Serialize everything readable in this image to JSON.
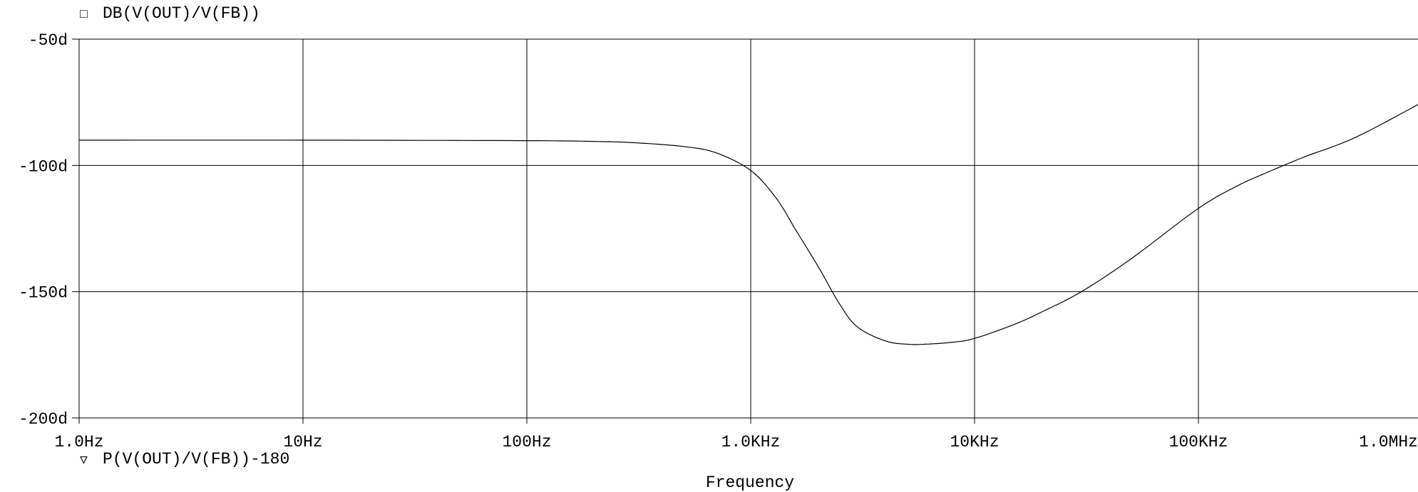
{
  "chart_data": {
    "type": "line",
    "x_scale": "log",
    "xlabel": "Frequency",
    "x_tick_labels": [
      "1.0Hz",
      "10Hz",
      "100Hz",
      "1.0KHz",
      "10KHz",
      "100KHz",
      "1.0MHz"
    ],
    "x_tick_values": [
      1,
      10,
      100,
      1000,
      10000,
      100000,
      1000000
    ],
    "xlim": [
      1,
      1000000
    ],
    "y_tick_labels": [
      "-50d",
      "-100d",
      "-150d",
      "-200d"
    ],
    "y_tick_values": [
      -50,
      -100,
      -150,
      -200
    ],
    "ylim": [
      -200,
      -50
    ],
    "grid": true,
    "legend": [
      {
        "marker": "□",
        "label": "DB(V(OUT)/V(FB))"
      },
      {
        "marker": "▽",
        "label": "P(V(OUT)/V(FB))-180"
      }
    ],
    "series": [
      {
        "name": "P(V(OUT)/V(FB))-180",
        "color": "#000000",
        "x": [
          1,
          10,
          100,
          200,
          300,
          500,
          700,
          1000,
          1300,
          1600,
          2000,
          2500,
          3000,
          4000,
          5000,
          6000,
          8000,
          10000,
          15000,
          20000,
          30000,
          50000,
          100000,
          150000,
          200000,
          300000,
          500000,
          1000000
        ],
        "y": [
          -90,
          -90,
          -90.2,
          -90.5,
          -91,
          -92.5,
          -95,
          -102,
          -113,
          -126,
          -140,
          -155,
          -164,
          -169.5,
          -170.8,
          -170.8,
          -170,
          -168.5,
          -163,
          -158,
          -150,
          -137,
          -117,
          -108,
          -103,
          -96.5,
          -89,
          -75
        ]
      }
    ]
  }
}
